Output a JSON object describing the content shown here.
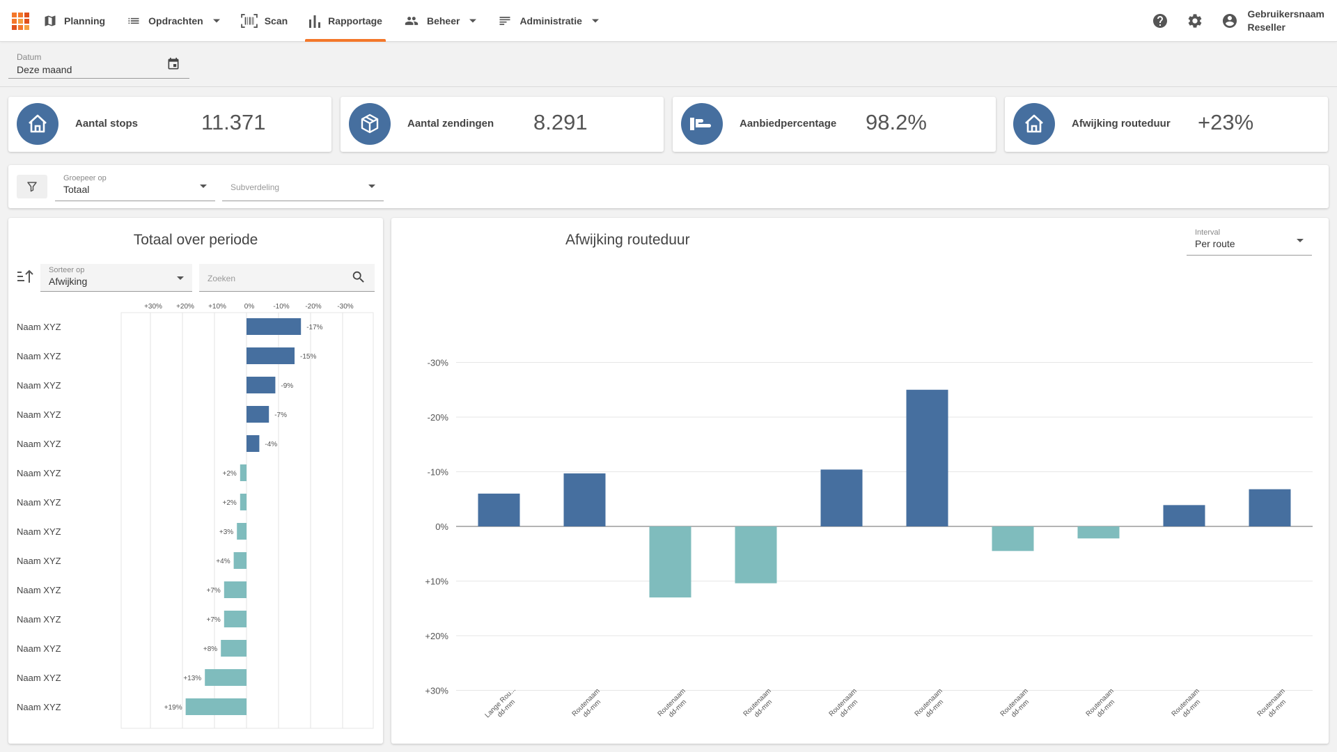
{
  "colors": {
    "accent": "#f4772a",
    "primary": "#466f9f",
    "negative_bar": "#466f9f",
    "positive_bar": "#7fbcbd",
    "logo": [
      "#f4772a",
      "#f4772a",
      "#e0521c",
      "#f4772a",
      "#f4a142",
      "#e0521c",
      "#e0521c",
      "#f4772a",
      "#f4a142"
    ]
  },
  "nav": {
    "items": [
      {
        "label": "Planning",
        "icon": "map-icon"
      },
      {
        "label": "Opdrachten",
        "icon": "list-icon",
        "dropdown": true
      },
      {
        "label": "Scan",
        "icon": "barcode-icon"
      },
      {
        "label": "Rapportage",
        "icon": "bar-chart-icon",
        "active": true
      },
      {
        "label": "Beheer",
        "icon": "people-icon",
        "dropdown": true
      },
      {
        "label": "Administratie",
        "icon": "notes-icon",
        "dropdown": true
      }
    ]
  },
  "user": {
    "name": "Gebruikersnaam",
    "role": "Reseller"
  },
  "date_filter": {
    "label": "Datum",
    "value": "Deze maand"
  },
  "kpis": [
    {
      "label": "Aantal stops",
      "value": "11.371",
      "icon": "home-icon"
    },
    {
      "label": "Aantal zendingen",
      "value": "8.291",
      "icon": "box-icon"
    },
    {
      "label": "Aanbiedpercentage",
      "value": "98.2%",
      "icon": "hand-icon"
    },
    {
      "label": "Afwijking routeduur",
      "value": "+23%",
      "icon": "home-icon"
    }
  ],
  "filters": {
    "group_label": "Groepeer op",
    "group_value": "Totaal",
    "subdivision_placeholder": "Subverdeling"
  },
  "left_panel": {
    "title": "Totaal over periode",
    "sort_label": "Sorteer op",
    "sort_value": "Afwijking",
    "search_placeholder": "Zoeken"
  },
  "right_panel": {
    "title": "Afwijking routeduur",
    "interval_label": "Interval",
    "interval_value": "Per route"
  },
  "chart_data": [
    {
      "type": "bar",
      "orientation": "horizontal",
      "title": "Totaal over periode",
      "axis_reversed": true,
      "xlim": [
        -30,
        30
      ],
      "x_ticks": [
        30,
        20,
        10,
        0,
        -10,
        -20,
        -30
      ],
      "x_tick_labels": [
        "+30%",
        "+20%",
        "+10%",
        "0%",
        "-10%",
        "-20%",
        "-30%"
      ],
      "grid": true,
      "categories": [
        "Naam XYZ",
        "Naam XYZ",
        "Naam XYZ",
        "Naam XYZ",
        "Naam XYZ",
        "Naam XYZ",
        "Naam XYZ",
        "Naam XYZ",
        "Naam XYZ",
        "Naam XYZ",
        "Naam XYZ",
        "Naam XYZ",
        "Naam XYZ",
        "Naam XYZ"
      ],
      "values": [
        -17,
        -15,
        -9,
        -7,
        -4,
        2,
        2,
        3,
        4,
        7,
        7,
        8,
        13,
        19
      ],
      "data_labels": [
        "-17%",
        "-15%",
        "-9%",
        "-7%",
        "-4%",
        "+2%",
        "+2%",
        "+3%",
        "+4%",
        "+7%",
        "+7%",
        "+8%",
        "+13%",
        "+19%"
      ]
    },
    {
      "type": "bar",
      "orientation": "vertical",
      "title": "Afwijking routeduur",
      "axis_reversed": true,
      "ylim": [
        -30,
        30
      ],
      "y_ticks": [
        -30,
        -20,
        -10,
        0,
        10,
        20,
        30
      ],
      "y_tick_labels": [
        "-30%",
        "-20%",
        "-10%",
        "0%",
        "+10%",
        "+20%",
        "+30%"
      ],
      "grid": true,
      "categories": [
        [
          "Lange Rou...",
          "dd-mm"
        ],
        [
          "Routenaam",
          "dd-mm"
        ],
        [
          "Routenaam",
          "dd-mm"
        ],
        [
          "Routenaam",
          "dd-mm"
        ],
        [
          "Routenaam",
          "dd-mm"
        ],
        [
          "Routenaam",
          "dd-mm"
        ],
        [
          "Routenaam",
          "dd-mm"
        ],
        [
          "Routenaam",
          "dd-mm"
        ],
        [
          "Routenaam",
          "dd-mm"
        ],
        [
          "Routenaam",
          "dd-mm"
        ]
      ],
      "values": [
        -6,
        -9.7,
        13,
        10.4,
        -10.4,
        -25,
        4.5,
        2.2,
        -3.9,
        -6.8
      ]
    }
  ]
}
